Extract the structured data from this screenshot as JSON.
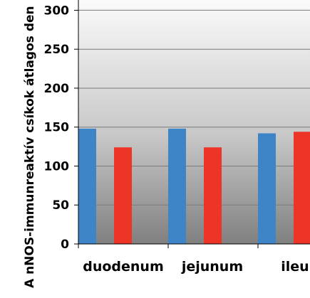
{
  "chart_data": {
    "type": "bar",
    "ylabel": "A nNOS-immunreaktív csíkok átlagos den",
    "categories": [
      "duodenum",
      "jejunum",
      "ileu"
    ],
    "series": [
      {
        "values": [
          148,
          148,
          142
        ]
      },
      {
        "values": [
          124,
          124,
          144
        ]
      }
    ],
    "ylim": [
      0,
      300
    ],
    "yticks": [
      0,
      50,
      100,
      150,
      200,
      250,
      300
    ],
    "grid": true,
    "legend": "none",
    "colors": {
      "series": [
        "#3e85c8",
        "#ec3427"
      ],
      "plot_top": "#fafafa",
      "plot_bottom": "#808080",
      "gridline": "#7a7a7a",
      "axis": "#000000"
    }
  }
}
